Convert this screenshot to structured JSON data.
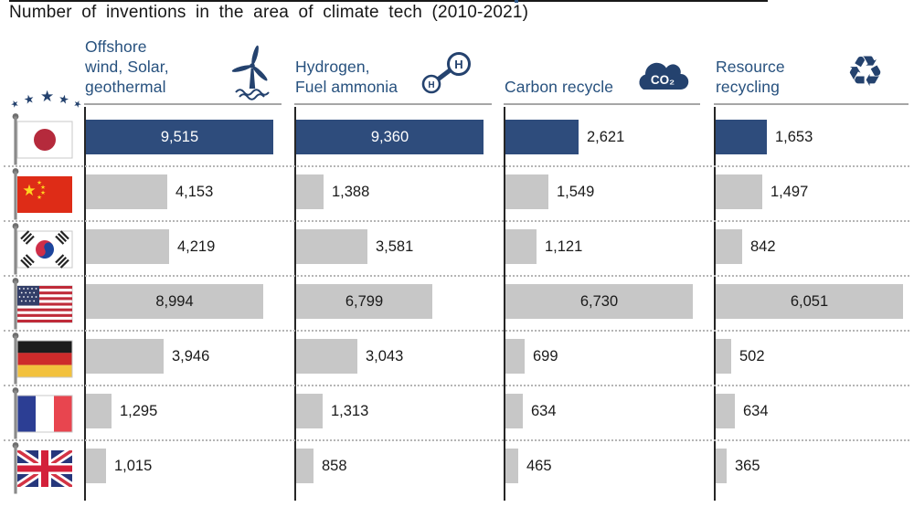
{
  "page": {
    "title": "Number of inventions in the area of climate tech (2010-2021)"
  },
  "decor": {
    "star_glyph": "★",
    "recycle_glyph": "♻"
  },
  "headers": [
    {
      "label": "Offshore\nwind, Solar,\ngeothermal",
      "icon": "wind-turbine-icon"
    },
    {
      "label": "Hydrogen,\nFuel ammonia",
      "icon": "hydrogen-molecule-icon",
      "icon_text": "H"
    },
    {
      "label": "Carbon recycle",
      "icon": "co2-cloud-icon",
      "icon_text": "CO₂"
    },
    {
      "label": "Resource\nrecycling",
      "icon": "recycle-icon"
    }
  ],
  "values_display": {
    "c0": [
      "9,515",
      "4,153",
      "4,219",
      "8,994",
      "3,946",
      "1,295",
      "1,015"
    ],
    "c1": [
      "9,360",
      "1,388",
      "3,581",
      "6,799",
      "3,043",
      "1,313",
      "858"
    ],
    "c2": [
      "2,621",
      "1,549",
      "1,121",
      "6,730",
      "699",
      "634",
      "465"
    ],
    "c3": [
      "1,653",
      "1,497",
      "842",
      "6,051",
      "502",
      "634",
      "365"
    ]
  },
  "chart_data": {
    "type": "bar",
    "orientation": "horizontal",
    "title": "Number of inventions in the area of climate tech (2010-2021)",
    "categories": [
      "Japan",
      "China",
      "South Korea",
      "United States",
      "Germany",
      "France",
      "United Kingdom"
    ],
    "category_icons": [
      "flag-japan",
      "flag-china",
      "flag-south-korea",
      "flag-usa",
      "flag-germany",
      "flag-france",
      "flag-uk"
    ],
    "series": [
      {
        "name": "Offshore wind, Solar, geothermal",
        "values": [
          9515,
          4153,
          4219,
          8994,
          3946,
          1295,
          1015
        ]
      },
      {
        "name": "Hydrogen, Fuel ammonia",
        "values": [
          9360,
          1388,
          3581,
          6799,
          3043,
          1313,
          858
        ]
      },
      {
        "name": "Carbon recycle",
        "values": [
          2621,
          1549,
          1121,
          6730,
          699,
          634,
          465
        ]
      },
      {
        "name": "Resource recycling",
        "values": [
          1653,
          1497,
          842,
          6051,
          502,
          634,
          365
        ]
      }
    ],
    "highlighted_category": "Japan",
    "colors": {
      "highlight": "#2e4c7c",
      "default": "#c7c7c7",
      "header_text": "#27517e"
    },
    "layout": {
      "each_column_scaled_to_own_max": true,
      "grid": "dotted-row-separators",
      "value_labels": "inside-when-long-else-outside"
    }
  }
}
